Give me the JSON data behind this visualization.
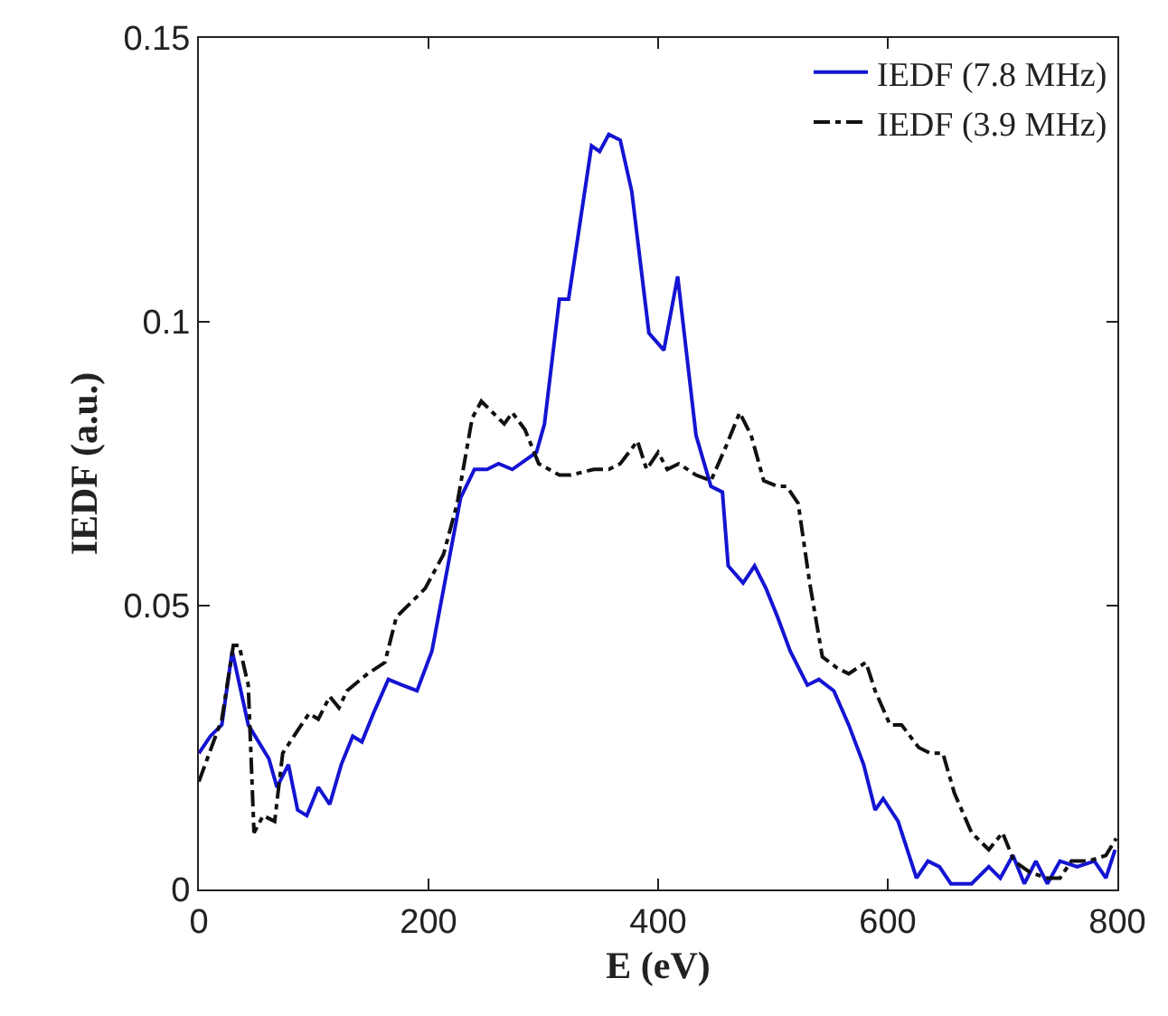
{
  "chart_data": {
    "type": "line",
    "xlabel": "E (eV)",
    "ylabel": "IEDF (a.u.)",
    "xlim": [
      0,
      800
    ],
    "xticks": [
      0,
      200,
      400,
      600,
      800
    ],
    "ylim": [
      0,
      0.15
    ],
    "yticks": [
      {
        "value": 0,
        "label": "0"
      },
      0.05,
      0.1,
      0.15
    ],
    "legend": "top right",
    "marker": "none",
    "series": [
      {
        "name": "IEDF (7.8 MHz)",
        "color": "#1414d2",
        "line_style": "solid",
        "x": [
          0,
          10,
          20,
          29,
          43,
          61,
          68,
          78,
          86,
          94,
          104,
          114,
          124,
          134,
          142,
          152,
          165,
          177,
          190,
          203,
          215,
          228,
          240,
          251,
          261,
          273,
          294,
          301,
          314,
          322,
          342,
          349,
          357,
          367,
          377,
          392,
          405,
          417,
          433,
          446,
          456,
          461,
          474,
          484,
          494,
          504,
          515,
          530,
          540,
          553,
          566,
          579,
          589,
          596,
          609,
          625,
          635,
          645,
          655,
          673,
          688,
          698,
          709,
          719,
          729,
          739,
          750,
          765,
          780,
          790,
          798
        ],
        "values": [
          0.024,
          0.027,
          0.029,
          0.042,
          0.029,
          0.023,
          0.018,
          0.022,
          0.014,
          0.013,
          0.018,
          0.015,
          0.022,
          0.027,
          0.026,
          0.031,
          0.037,
          0.036,
          0.035,
          0.042,
          0.055,
          0.069,
          0.074,
          0.074,
          0.075,
          0.074,
          0.077,
          0.082,
          0.104,
          0.104,
          0.131,
          0.13,
          0.133,
          0.132,
          0.123,
          0.098,
          0.095,
          0.108,
          0.08,
          0.071,
          0.07,
          0.057,
          0.054,
          0.057,
          0.053,
          0.048,
          0.042,
          0.036,
          0.037,
          0.035,
          0.029,
          0.022,
          0.014,
          0.016,
          0.012,
          0.002,
          0.005,
          0.004,
          0.001,
          0.001,
          0.004,
          0.002,
          0.006,
          0.001,
          0.005,
          0.001,
          0.005,
          0.004,
          0.005,
          0.002,
          0.007
        ]
      },
      {
        "name": "IEDF (3.9 MHz)",
        "color": "#111111",
        "line_style": "dashed",
        "x": [
          0,
          20,
          30,
          35,
          43,
          48,
          56,
          66,
          73,
          86,
          96,
          104,
          114,
          122,
          129,
          147,
          162,
          172,
          187,
          197,
          213,
          225,
          238,
          246,
          256,
          266,
          273,
          284,
          296,
          314,
          324,
          344,
          357,
          367,
          382,
          390,
          400,
          408,
          418,
          433,
          446,
          459,
          471,
          481,
          492,
          504,
          512,
          522,
          532,
          543,
          556,
          566,
          581,
          589,
          602,
          612,
          627,
          637,
          648,
          658,
          673,
          688,
          700,
          710,
          724,
          739,
          750,
          760,
          775,
          790,
          799
        ],
        "values": [
          0.019,
          0.03,
          0.043,
          0.043,
          0.036,
          0.01,
          0.013,
          0.012,
          0.024,
          0.028,
          0.031,
          0.03,
          0.034,
          0.032,
          0.035,
          0.038,
          0.04,
          0.048,
          0.051,
          0.053,
          0.059,
          0.068,
          0.083,
          0.086,
          0.084,
          0.082,
          0.084,
          0.081,
          0.075,
          0.073,
          0.073,
          0.074,
          0.074,
          0.075,
          0.079,
          0.074,
          0.077,
          0.074,
          0.075,
          0.073,
          0.072,
          0.078,
          0.084,
          0.08,
          0.072,
          0.071,
          0.071,
          0.068,
          0.054,
          0.041,
          0.039,
          0.038,
          0.04,
          0.035,
          0.029,
          0.029,
          0.025,
          0.024,
          0.024,
          0.017,
          0.01,
          0.007,
          0.01,
          0.005,
          0.003,
          0.002,
          0.002,
          0.005,
          0.005,
          0.006,
          0.009
        ]
      }
    ]
  }
}
